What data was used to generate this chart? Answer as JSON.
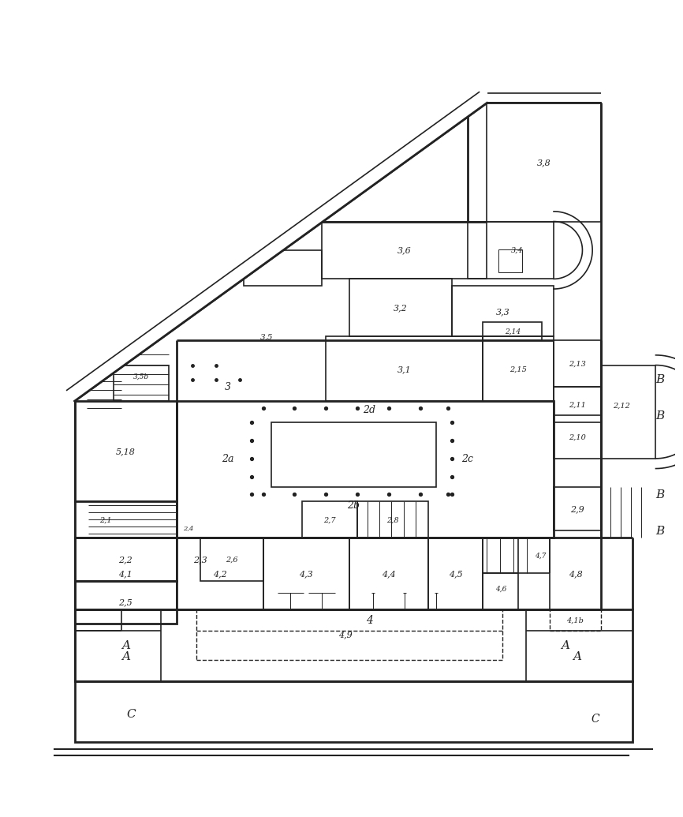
{
  "background_color": "#ffffff",
  "line_color": "#222222",
  "figsize": [
    8.63,
    10.24
  ],
  "dpi": 100,
  "xlim": [
    0,
    100
  ],
  "ylim": [
    0,
    120
  ]
}
